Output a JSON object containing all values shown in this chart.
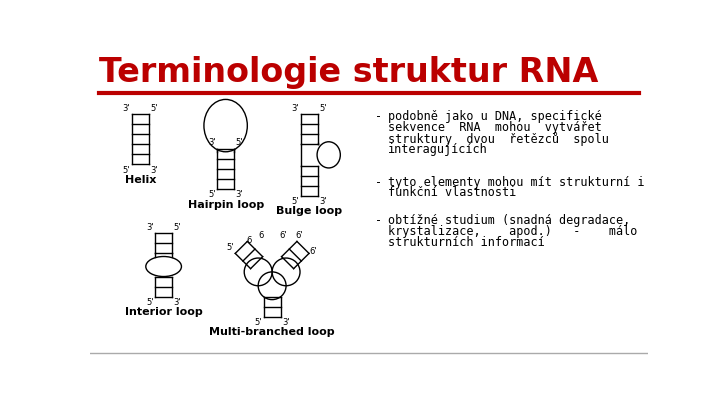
{
  "title": "Terminologie struktur RNA",
  "title_color": "#bb0000",
  "title_fontsize": 24,
  "background_color": "#ffffff",
  "separator_color": "#bb0000",
  "bullet_points": [
    "podobně jako u DNA, specifické sekvence RNA mohou vytvářet struktury dvou řetězců spolu interagujících",
    "tyto elementy mohou mít strukturní i funkční vlastnosti",
    "obtížné studium (snadná degradace, krystalizace,  apod.)  -  málo strukturních informací"
  ],
  "labels": [
    "Helix",
    "Hairpin loop",
    "Bulge loop",
    "Interior loop",
    "Multi-branched loop"
  ],
  "text_color": "#000000",
  "line_color": "#000000",
  "label_fontsize": 8,
  "tick_fontsize": 6,
  "bullet_fontsize": 8.5
}
